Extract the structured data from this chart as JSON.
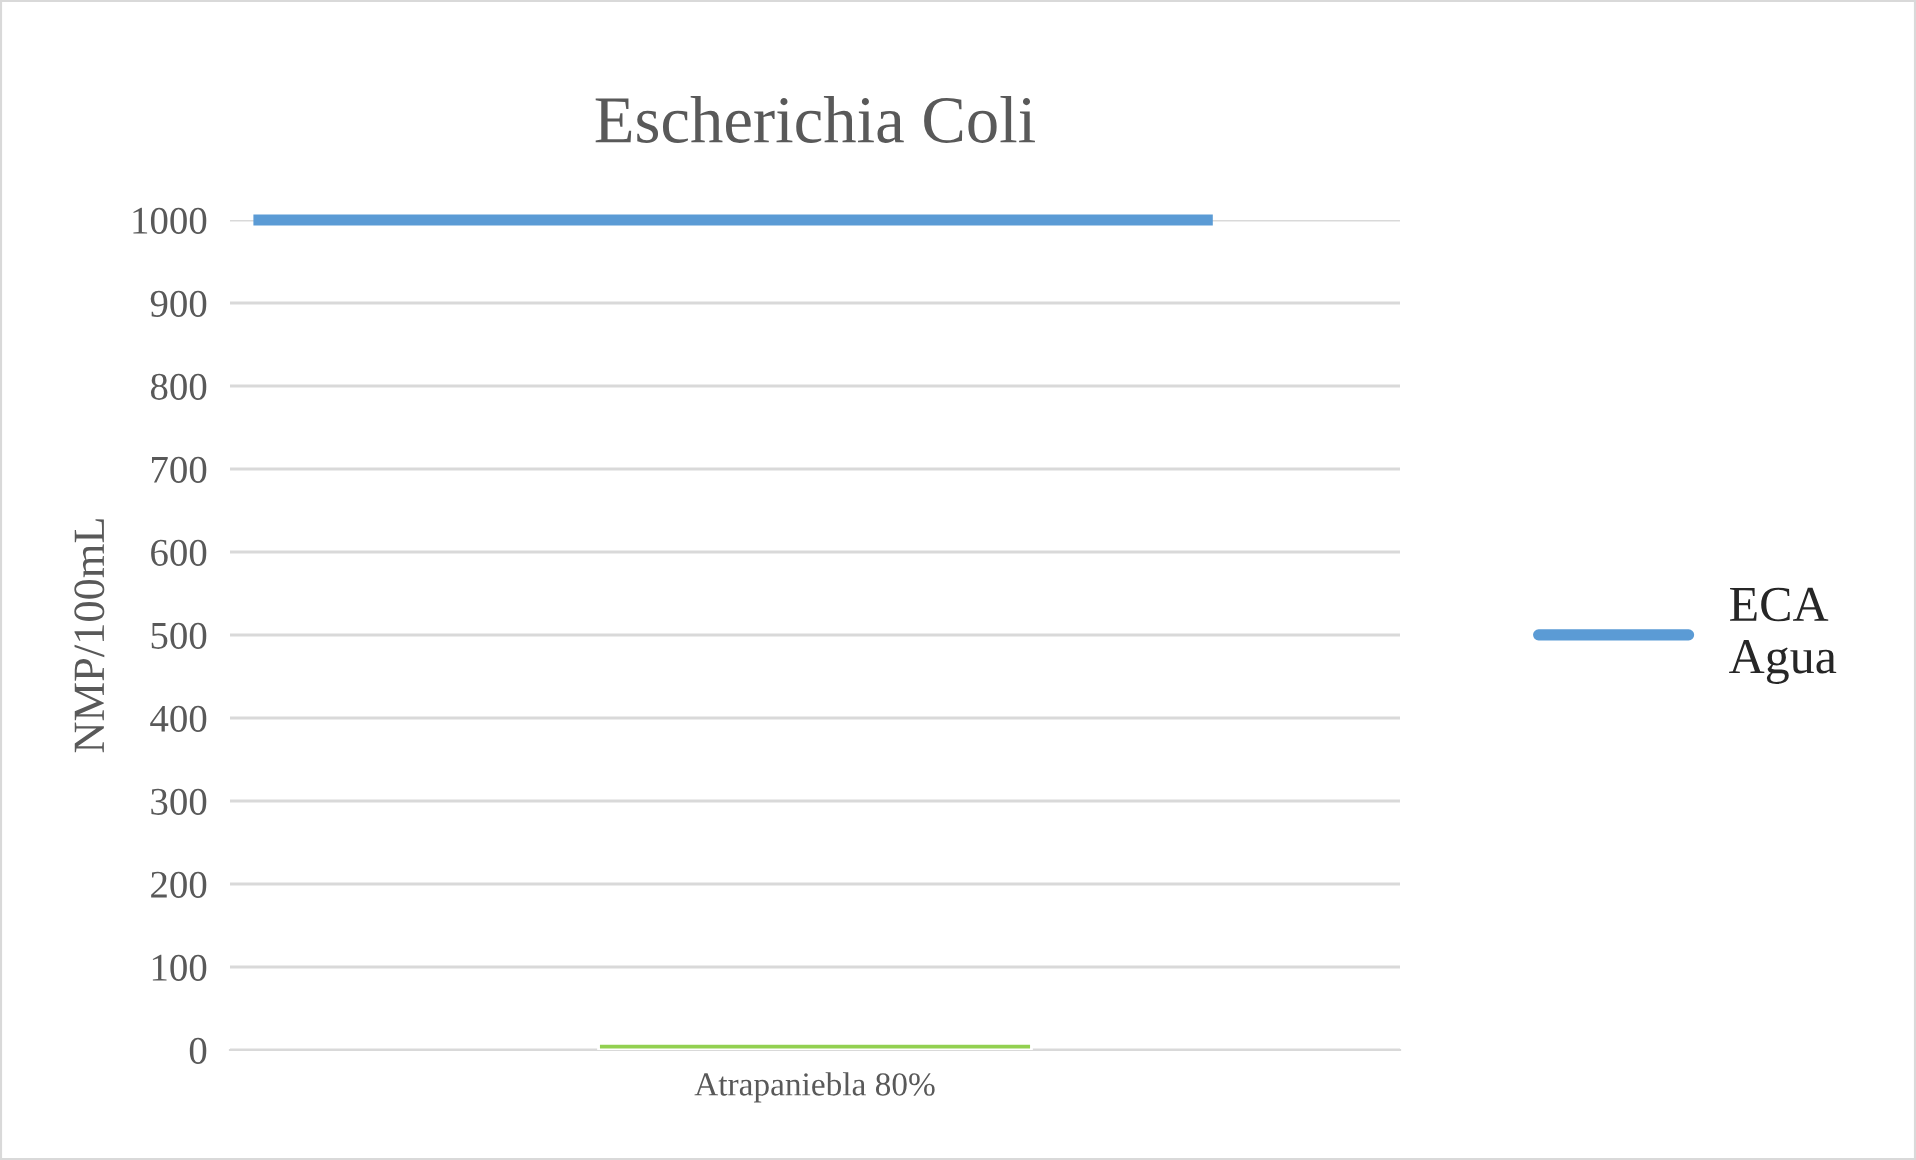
{
  "chart_data": {
    "type": "bar",
    "title": "Escherichia Coli",
    "ylabel": "NMP/100mL",
    "categories": [
      "Atrapaniebla 80%"
    ],
    "series": [
      {
        "color": "#92d050",
        "values": [
          8
        ]
      }
    ],
    "ref_lines": [
      {
        "axis": "y",
        "value": 1000,
        "label": "ECA Agua",
        "color": "#5b9bd5"
      }
    ],
    "ylim": [
      0,
      1000
    ],
    "yticks": [
      0,
      100,
      200,
      300,
      400,
      500,
      600,
      700,
      800,
      900,
      1000
    ],
    "grid": "y",
    "legend": "right"
  }
}
